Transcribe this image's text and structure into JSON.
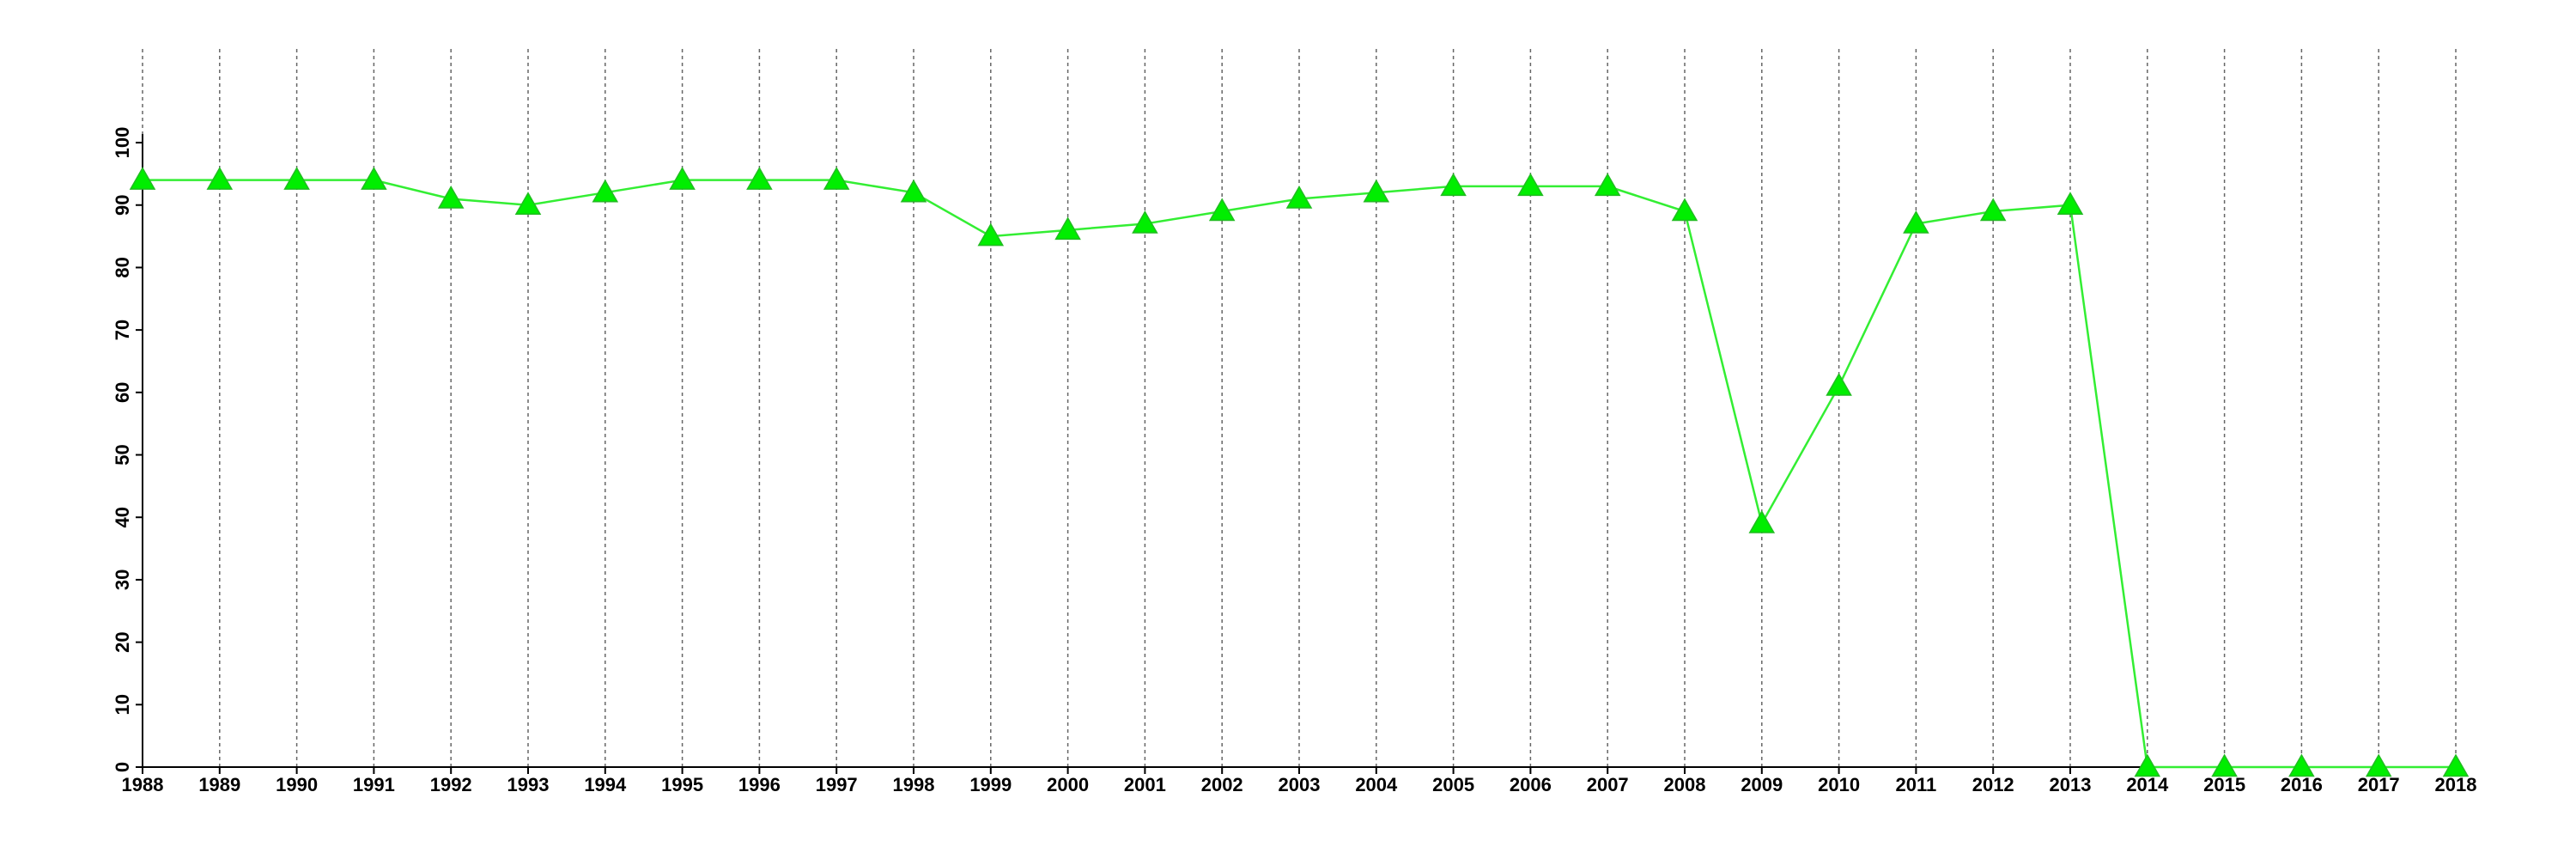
{
  "chart_data": {
    "type": "line",
    "x": [
      1988,
      1989,
      1990,
      1991,
      1992,
      1993,
      1994,
      1995,
      1996,
      1997,
      1998,
      1999,
      2000,
      2001,
      2002,
      2003,
      2004,
      2005,
      2006,
      2007,
      2008,
      2009,
      2010,
      2011,
      2012,
      2013,
      2014,
      2015,
      2016,
      2017,
      2018
    ],
    "values": [
      94,
      94,
      94,
      94,
      91,
      90,
      92,
      94,
      94,
      94,
      92,
      85,
      86,
      87,
      89,
      91,
      92,
      93,
      93,
      93,
      89,
      39,
      61,
      87,
      89,
      90,
      0,
      0,
      0,
      0,
      0
    ],
    "color": "#33ee33",
    "xlim": [
      1988,
      2018
    ],
    "xticks": [
      1988,
      1989,
      1990,
      1991,
      1992,
      1993,
      1994,
      1995,
      1996,
      1997,
      1998,
      1999,
      2000,
      2001,
      2002,
      2003,
      2004,
      2005,
      2006,
      2007,
      2008,
      2009,
      2010,
      2011,
      2012,
      2013,
      2014,
      2015,
      2016,
      2017,
      2018
    ],
    "ylim": [
      0,
      115
    ],
    "yticks": [
      0,
      10,
      20,
      30,
      40,
      50,
      60,
      70,
      80,
      90,
      100
    ],
    "grid": true
  }
}
